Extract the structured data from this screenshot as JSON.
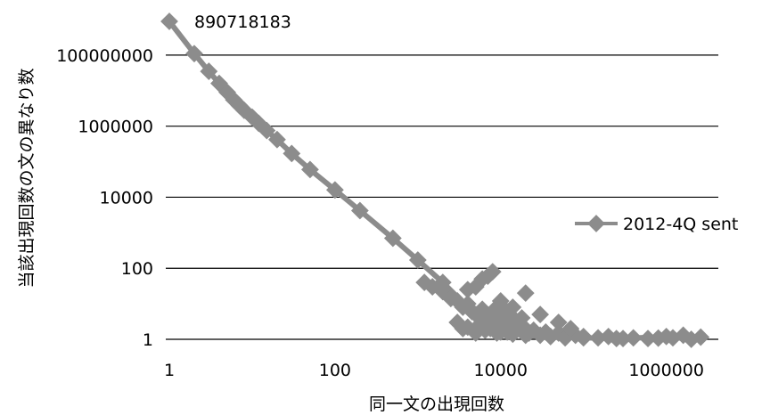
{
  "chart_data": {
    "type": "scatter",
    "title": "",
    "xlabel": "同一文の出現回数",
    "ylabel": "当該出現回数の文の異なり数",
    "x_scale": "log",
    "y_scale": "log",
    "xlim": [
      1,
      3000000
    ],
    "ylim": [
      1,
      1000000000
    ],
    "x_ticks": [
      "1",
      "100",
      "10000",
      "1000000"
    ],
    "y_ticks": [
      "1",
      "100",
      "10000",
      "1000000",
      "100000000"
    ],
    "grid": "horizontal",
    "legend": "right",
    "colors": {
      "series": "#8c8c8c",
      "grid": "#000000"
    },
    "series": [
      {
        "name": "2012-4Q sent",
        "marker": "diamond",
        "line": true,
        "x": [
          1,
          2,
          3,
          4,
          5,
          6,
          7,
          8,
          10,
          12,
          15,
          20,
          30,
          50,
          100,
          200,
          500,
          1000,
          2000,
          4000,
          6000,
          8000,
          10000,
          20000,
          40000,
          100000,
          300000,
          1000000,
          2000000
        ],
        "y": [
          890718183,
          110000000,
          35000000,
          16000000,
          9000000,
          5500000,
          3800000,
          2800000,
          1800000,
          1200000,
          750000,
          420000,
          170000,
          60000,
          16000,
          4200,
          700,
          170,
          40,
          8,
          3,
          2,
          1.6,
          1.3,
          1.2,
          1.1,
          1.05,
          1.2,
          1
        ]
      }
    ],
    "scatter_points": [
      [
        1200,
        40
      ],
      [
        1500,
        30
      ],
      [
        2000,
        22
      ],
      [
        2500,
        14
      ],
      [
        3000,
        12
      ],
      [
        3500,
        8
      ],
      [
        4000,
        10
      ],
      [
        4500,
        6
      ],
      [
        5000,
        5
      ],
      [
        6000,
        7
      ],
      [
        7000,
        4
      ],
      [
        8000,
        5
      ],
      [
        9000,
        3
      ],
      [
        11000,
        4
      ],
      [
        13000,
        3
      ],
      [
        15000,
        3.5
      ],
      [
        18000,
        2.5
      ],
      [
        3000,
        3
      ],
      [
        3500,
        2
      ],
      [
        4000,
        2.2
      ],
      [
        5000,
        1.5
      ],
      [
        5500,
        2.5
      ],
      [
        6500,
        1.8
      ],
      [
        7500,
        2
      ],
      [
        9000,
        1.5
      ],
      [
        10000,
        2
      ],
      [
        12000,
        1.6
      ],
      [
        14000,
        1.4
      ],
      [
        16000,
        2
      ],
      [
        22000,
        1.5
      ],
      [
        25000,
        1.8
      ],
      [
        30000,
        1.3
      ],
      [
        35000,
        1.6
      ],
      [
        40000,
        1.2
      ],
      [
        50000,
        1.5
      ],
      [
        60000,
        1.1
      ],
      [
        80000,
        1.3
      ],
      [
        100000,
        1.2
      ],
      [
        150000,
        1.1
      ],
      [
        200000,
        1.2
      ],
      [
        250000,
        1.05
      ],
      [
        400000,
        1.1
      ],
      [
        600000,
        1.05
      ],
      [
        800000,
        1.08
      ],
      [
        1200000,
        1.1
      ],
      [
        1600000,
        1.3
      ],
      [
        2600000,
        1.15
      ],
      [
        8000,
        80
      ],
      [
        7000,
        60
      ],
      [
        6000,
        50
      ],
      [
        5000,
        30
      ],
      [
        4000,
        25
      ],
      [
        20000,
        20
      ],
      [
        10000,
        12
      ],
      [
        14000,
        8
      ],
      [
        30000,
        5
      ],
      [
        50000,
        3
      ],
      [
        70000,
        2
      ],
      [
        12000,
        6
      ],
      [
        9000,
        8
      ],
      [
        18000,
        4
      ]
    ],
    "annotations": [
      {
        "text": "890718183",
        "x": 1,
        "y": 890718183
      }
    ]
  }
}
